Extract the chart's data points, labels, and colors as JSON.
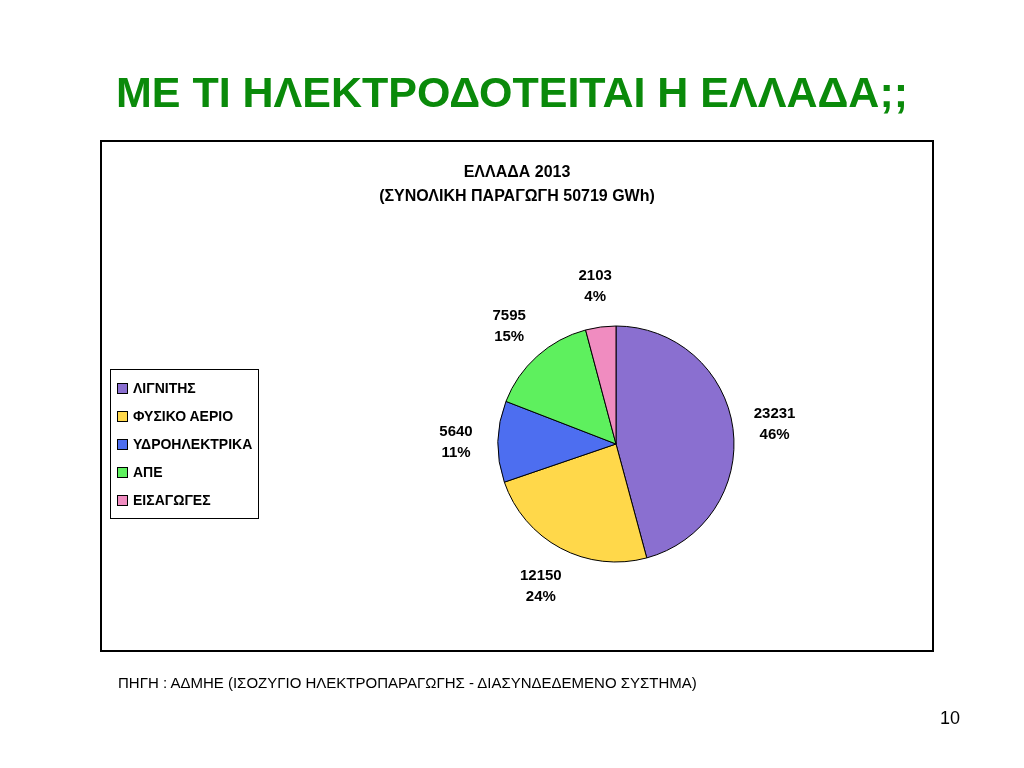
{
  "chart_data": {
    "type": "pie",
    "title": "ΕΛΛΑΔΑ 2013",
    "subtitle": "(ΣΥΝΟΛΙΚΗ ΠΑΡΑΓΩΓΗ 50719 GWh)",
    "categories": [
      "ΛΙΓΝΙΤΗΣ",
      "ΦΥΣΙΚΟ ΑΕΡΙΟ",
      "ΥΔΡΟΗΛΕΚΤΡΙΚΑ",
      "ΑΠΕ",
      "ΕΙΣΑΓΩΓΕΣ"
    ],
    "values": [
      23231,
      12150,
      5640,
      7595,
      2103
    ],
    "value_labels": [
      "23231\n46%",
      "12150\n24%",
      "5640\n11%",
      "7595\n15%",
      "2103\n4%"
    ],
    "colors": [
      "#8a6fd0",
      "#ffd84a",
      "#4d6ef0",
      "#5ef05e",
      "#f08cc0"
    ],
    "legend": "left",
    "annotations": [
      "ΜΕ ΤΙ ΗΛΕΚΤΡΟΔΟΤΕΙΤΑΙ Η ΕΛΛΑΔΑ;;",
      "ΠΗΓΗ : ΑΔΜΗΕ (ΙΣΟΖΥΓΙΟ ΗΛΕΚΤΡΟΠΑΡΑΓΩΓΗΣ - ΔΙΑΣΥΝΔΕΔΕΜΕΝΟ ΣΥΣΤΗΜΑ)",
      "10"
    ]
  }
}
